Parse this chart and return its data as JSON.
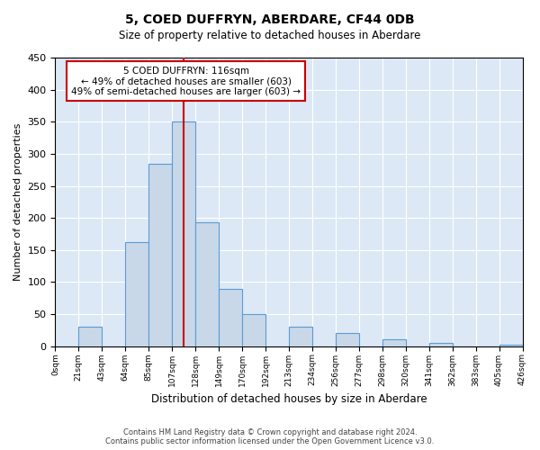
{
  "title": "5, COED DUFFRYN, ABERDARE, CF44 0DB",
  "subtitle": "Size of property relative to detached houses in Aberdare",
  "xlabel": "Distribution of detached houses by size in Aberdare",
  "ylabel": "Number of detached properties",
  "bin_labels": [
    "0sqm",
    "21sqm",
    "43sqm",
    "64sqm",
    "85sqm",
    "107sqm",
    "128sqm",
    "149sqm",
    "170sqm",
    "192sqm",
    "213sqm",
    "234sqm",
    "256sqm",
    "277sqm",
    "298sqm",
    "320sqm",
    "341sqm",
    "362sqm",
    "383sqm",
    "405sqm",
    "426sqm"
  ],
  "bar_values": [
    0,
    30,
    0,
    163,
    285,
    350,
    193,
    90,
    50,
    0,
    30,
    0,
    20,
    0,
    11,
    0,
    5,
    0,
    0,
    3
  ],
  "bar_color": "#c8d8e8",
  "bar_edge_color": "#5b9bd5",
  "vline_x": 5.5,
  "vline_color": "#cc0000",
  "annotation_line1": "5 COED DUFFRYN: 116sqm",
  "annotation_line2": "← 49% of detached houses are smaller (603)",
  "annotation_line3": "49% of semi-detached houses are larger (603) →",
  "annotation_box_color": "#ffffff",
  "annotation_box_edge": "#cc0000",
  "ylim": [
    0,
    450
  ],
  "yticks": [
    0,
    50,
    100,
    150,
    200,
    250,
    300,
    350,
    400,
    450
  ],
  "footer": "Contains HM Land Registry data © Crown copyright and database right 2024.\nContains public sector information licensed under the Open Government Licence v3.0.",
  "bg_color": "#dce8f5"
}
